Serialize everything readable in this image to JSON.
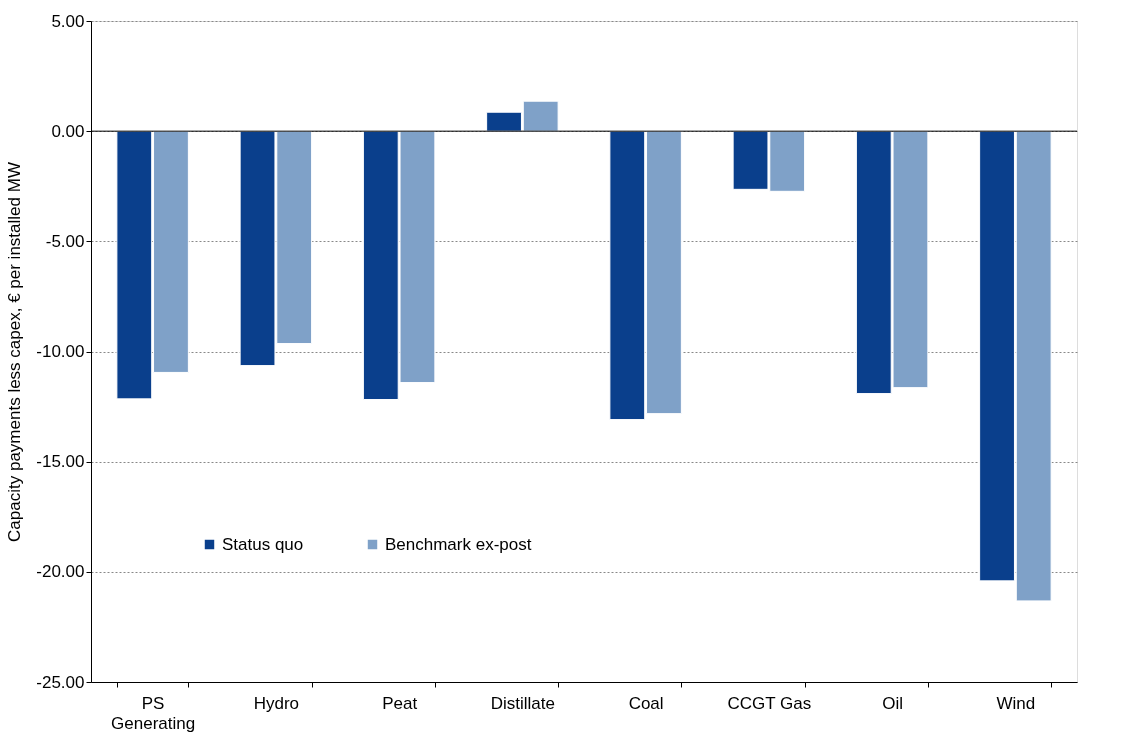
{
  "chart_data": {
    "type": "bar",
    "ylabel": "Capacity payments less capex, € per installed MW",
    "categories": [
      "PS Generating",
      "Hydro",
      "Peat",
      "Distillate",
      "Coal",
      "CCGT Gas",
      "Oil",
      "Wind"
    ],
    "series": [
      {
        "name": "Status quo",
        "color": "#0a3f8c",
        "values": [
          -12.15,
          -10.64,
          -12.18,
          0.86,
          -13.09,
          -2.64,
          -11.91,
          -20.41
        ]
      },
      {
        "name": "Benchmark ex-post",
        "color": "#7fa1c8",
        "values": [
          -10.95,
          -9.64,
          -11.41,
          1.36,
          -12.82,
          -2.73,
          -11.64,
          -21.32
        ]
      }
    ],
    "ylim": [
      -25,
      5
    ],
    "yticks": [
      {
        "value": -25,
        "label": "-25.00"
      },
      {
        "value": -20,
        "label": "-20.00"
      },
      {
        "value": -15,
        "label": "-15.00"
      },
      {
        "value": -10,
        "label": "-10.00"
      },
      {
        "value": -5,
        "label": "-5.00"
      },
      {
        "value": 0,
        "label": "0.00"
      },
      {
        "value": 5,
        "label": "5.00"
      }
    ],
    "grid": "y",
    "legend": "bottom left"
  }
}
